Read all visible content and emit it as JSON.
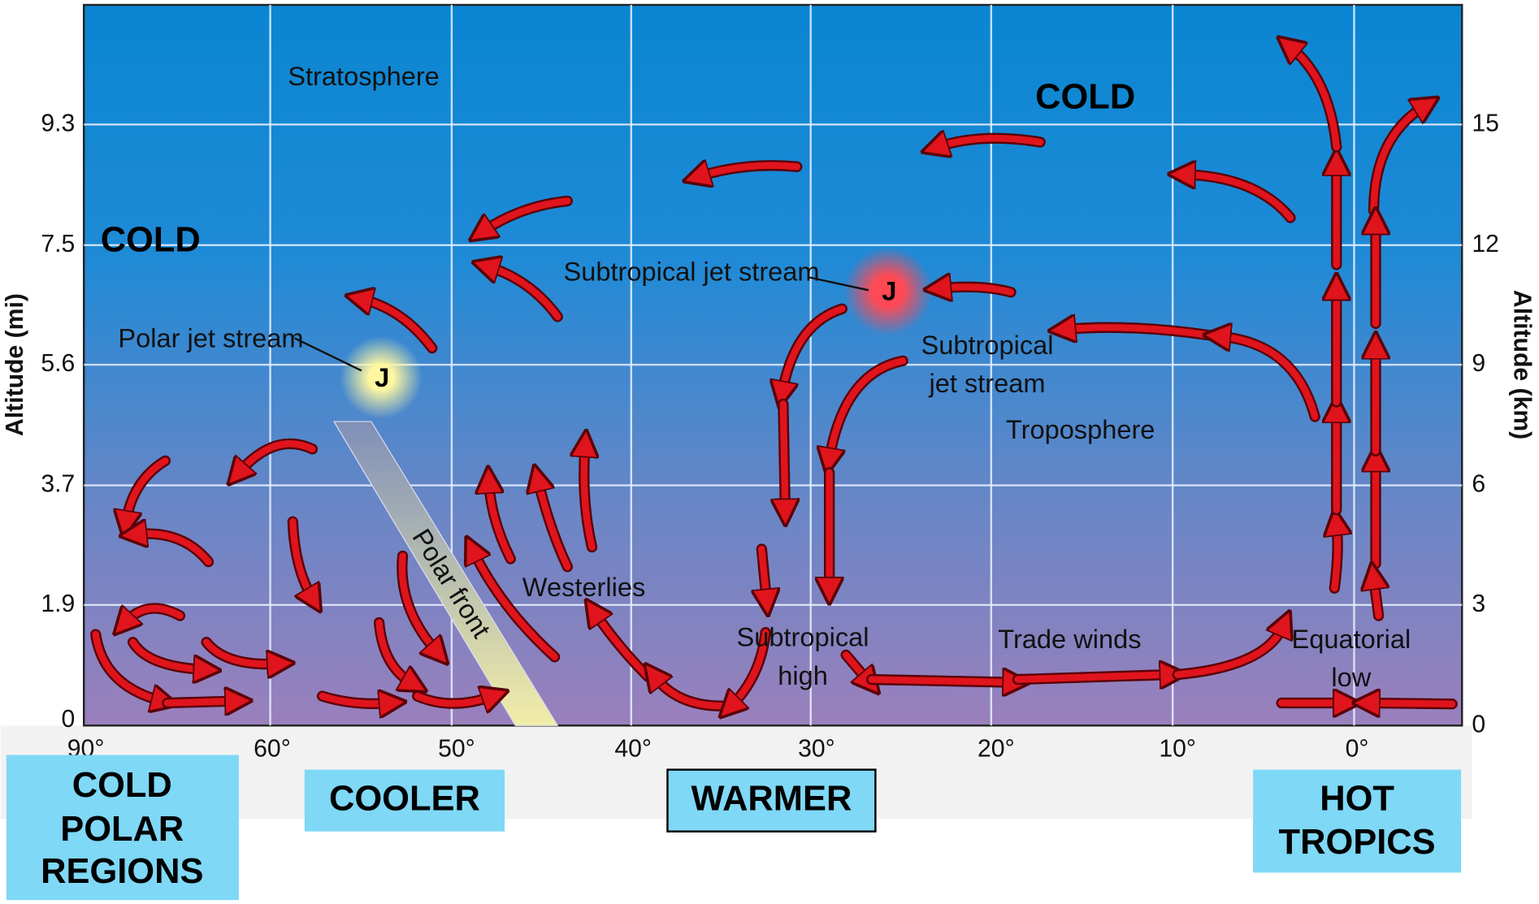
{
  "axis": {
    "left_title": "Altitude (mi)",
    "right_title": "Altitude (km)",
    "left_ticks": [
      "9.3",
      "7.5",
      "5.6",
      "3.7",
      "1.9",
      "0"
    ],
    "right_ticks": [
      "15",
      "12",
      "9",
      "6",
      "3",
      "0"
    ],
    "bottom_ticks": [
      "90°",
      "60°",
      "50°",
      "40°",
      "30°",
      "20°",
      "10°",
      "0°"
    ]
  },
  "labels": {
    "stratosphere": "Stratosphere",
    "cold_top": "COLD",
    "cold_left": "COLD",
    "polar_jet": "Polar jet stream",
    "polar_jet_marker": "J",
    "subtropical_jet": "Subtropical jet stream",
    "subtropical_jet_marker": "J",
    "subtropical_jet_2": [
      "Subtropical",
      "jet stream"
    ],
    "troposphere": "Troposphere",
    "westerlies": "Westerlies",
    "polar_front": "Polar front",
    "subtropical_high": [
      "Subtropical",
      "high"
    ],
    "trade_winds": "Trade winds",
    "equatorial_low": [
      "Equatorial",
      "low"
    ]
  },
  "regions": [
    {
      "lines": [
        "COLD",
        "POLAR",
        "REGIONS"
      ]
    },
    {
      "lines": [
        "COOLER"
      ]
    },
    {
      "lines": [
        "WARMER"
      ]
    },
    {
      "lines": [
        "HOT",
        "TROPICS"
      ]
    }
  ]
}
